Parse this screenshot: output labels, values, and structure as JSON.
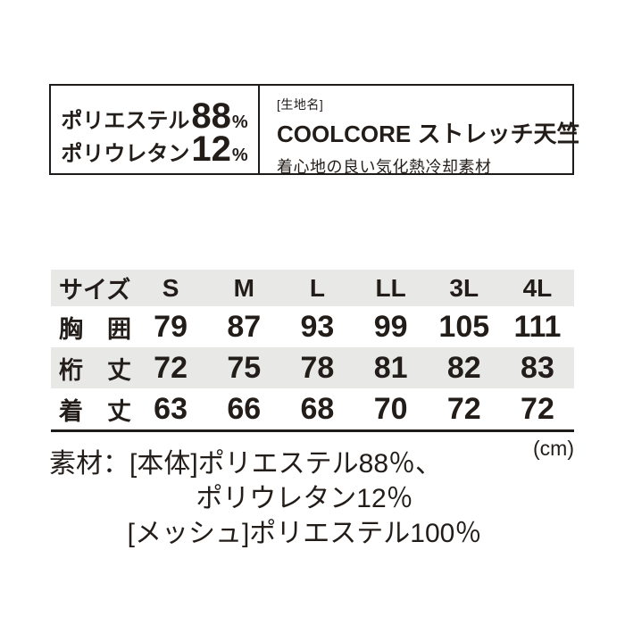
{
  "colors": {
    "text": "#231d1a",
    "row_gray": "#e8e8e6",
    "border": "#1f1b18",
    "background": "#ffffff"
  },
  "material_box": {
    "compositions": [
      {
        "name": "ポリエステル",
        "value": "88",
        "unit": "%"
      },
      {
        "name": "ポリウレタン",
        "value": "12",
        "unit": "%"
      }
    ],
    "fabric": {
      "label": "[生地名]",
      "name": "COOLCORE ストレッチ天竺",
      "description": "着心地の良い気化熱冷却素材"
    }
  },
  "size_table": {
    "header": {
      "label": "サイズ",
      "sizes": [
        "S",
        "M",
        "L",
        "LL",
        "3L",
        "4L"
      ]
    },
    "rows": [
      {
        "label": "胸　囲",
        "values": [
          "79",
          "87",
          "93",
          "99",
          "105",
          "111"
        ]
      },
      {
        "label": "桁　丈",
        "values": [
          "72",
          "75",
          "78",
          "81",
          "82",
          "83"
        ]
      },
      {
        "label": "着　丈",
        "values": [
          "63",
          "66",
          "68",
          "70",
          "72",
          "72"
        ]
      }
    ],
    "unit": "(cm)"
  },
  "material_note": {
    "lines": [
      "素材：[本体]ポリエステル88％、",
      "ポリウレタン12％",
      "[メッシュ]ポリエステル100％"
    ]
  }
}
